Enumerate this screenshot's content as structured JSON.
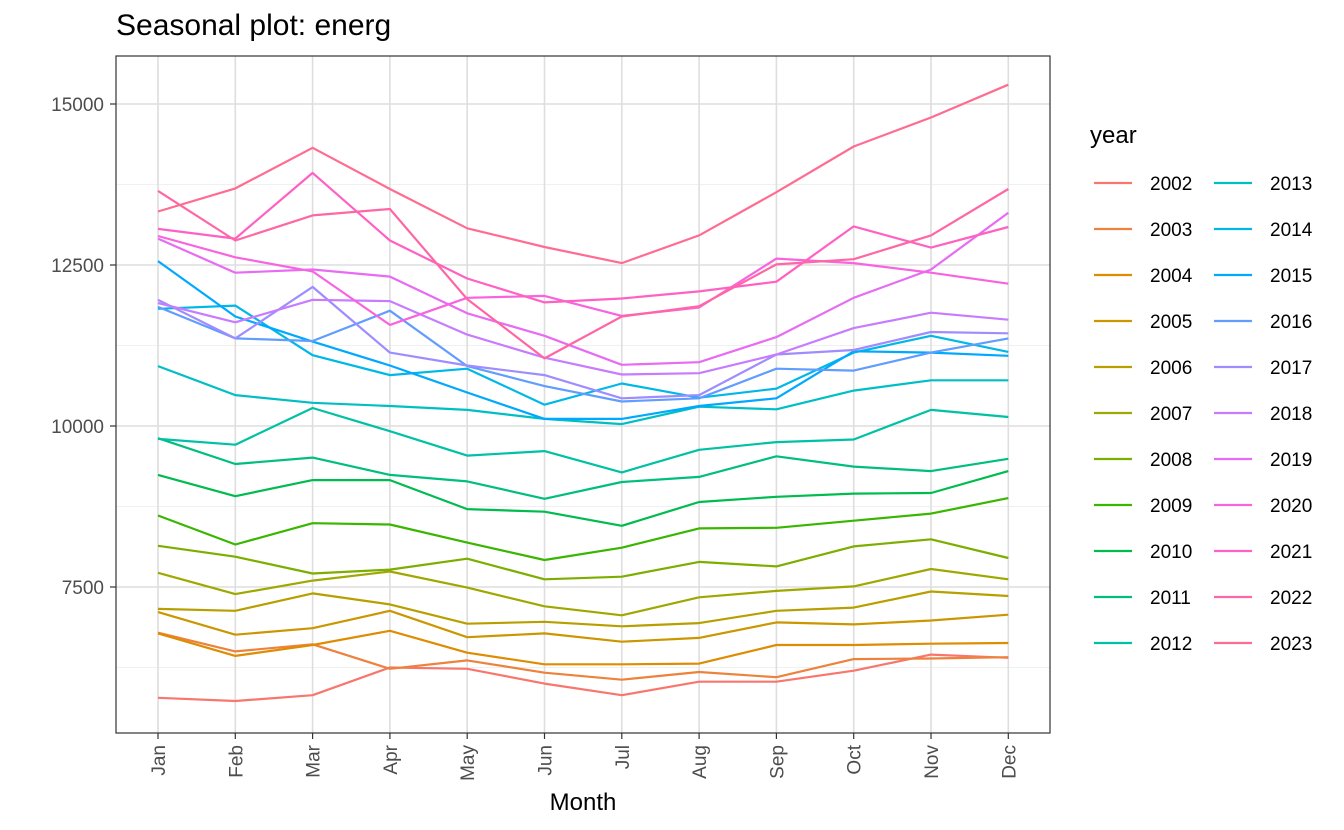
{
  "chart_data": {
    "type": "line",
    "title": "Seasonal plot: energ",
    "xlabel": "Month",
    "ylabel": "",
    "categories": [
      "Jan",
      "Feb",
      "Mar",
      "Apr",
      "May",
      "Jun",
      "Jul",
      "Aug",
      "Sep",
      "Oct",
      "Nov",
      "Dec"
    ],
    "yticks": [
      7500,
      10000,
      12500,
      15000
    ],
    "ylim": [
      5000,
      15800
    ],
    "grid": true,
    "legend": {
      "title": "year",
      "position": "right"
    },
    "series": [
      {
        "name": "2002",
        "color": "#F8766D",
        "values": [
          5780,
          5730,
          5820,
          6250,
          6230,
          6000,
          5820,
          6030,
          6030,
          6200,
          6450,
          6400
        ]
      },
      {
        "name": "2003",
        "color": "#EC823C",
        "values": [
          6790,
          6500,
          6610,
          6230,
          6360,
          6170,
          6060,
          6180,
          6100,
          6380,
          6390,
          6410
        ]
      },
      {
        "name": "2004",
        "color": "#DE8C00",
        "values": [
          6780,
          6430,
          6600,
          6820,
          6480,
          6300,
          6300,
          6310,
          6600,
          6600,
          6620,
          6630
        ]
      },
      {
        "name": "2005",
        "color": "#CC9600",
        "values": [
          7110,
          6760,
          6860,
          7130,
          6720,
          6780,
          6650,
          6710,
          6950,
          6920,
          6980,
          7070
        ]
      },
      {
        "name": "2006",
        "color": "#B79F00",
        "values": [
          7160,
          7130,
          7400,
          7230,
          6930,
          6960,
          6890,
          6940,
          7130,
          7180,
          7430,
          7360
        ]
      },
      {
        "name": "2007",
        "color": "#9FA800",
        "values": [
          7720,
          7390,
          7600,
          7740,
          7490,
          7200,
          7060,
          7340,
          7440,
          7510,
          7780,
          7620
        ]
      },
      {
        "name": "2008",
        "color": "#7CAE00",
        "values": [
          8140,
          7970,
          7710,
          7770,
          7940,
          7620,
          7660,
          7890,
          7820,
          8130,
          8240,
          7950
        ]
      },
      {
        "name": "2009",
        "color": "#39B600",
        "values": [
          8610,
          8160,
          8490,
          8470,
          8190,
          7920,
          8110,
          8410,
          8420,
          8530,
          8640,
          8880
        ]
      },
      {
        "name": "2010",
        "color": "#00BB4E",
        "values": [
          9240,
          8910,
          9160,
          9160,
          8710,
          8670,
          8450,
          8820,
          8900,
          8950,
          8960,
          9300
        ]
      },
      {
        "name": "2011",
        "color": "#00BF7D",
        "values": [
          9810,
          9410,
          9510,
          9240,
          9140,
          8870,
          9130,
          9210,
          9530,
          9370,
          9300,
          9490
        ]
      },
      {
        "name": "2012",
        "color": "#00C1A3",
        "values": [
          9800,
          9710,
          10280,
          9920,
          9540,
          9610,
          9280,
          9630,
          9750,
          9790,
          10250,
          10140
        ]
      },
      {
        "name": "2013",
        "color": "#00BFC4",
        "values": [
          10930,
          10480,
          10360,
          10310,
          10250,
          10110,
          10030,
          10300,
          10260,
          10550,
          10710,
          10710
        ]
      },
      {
        "name": "2014",
        "color": "#00B8E7",
        "values": [
          11820,
          11870,
          11100,
          10790,
          10890,
          10330,
          10660,
          10440,
          10580,
          11140,
          11400,
          11150
        ]
      },
      {
        "name": "2015",
        "color": "#00A9FF",
        "values": [
          12560,
          11700,
          11310,
          10940,
          10520,
          10110,
          10110,
          10310,
          10430,
          11160,
          11140,
          11090
        ]
      },
      {
        "name": "2016",
        "color": "#619CFF",
        "values": [
          11850,
          11360,
          11320,
          11790,
          10930,
          10620,
          10380,
          10430,
          10890,
          10860,
          11140,
          11360
        ]
      },
      {
        "name": "2017",
        "color": "#9F8CFF",
        "values": [
          11960,
          11360,
          12160,
          11140,
          10940,
          10790,
          10430,
          10480,
          11110,
          11180,
          11460,
          11440
        ]
      },
      {
        "name": "2018",
        "color": "#C77CFF",
        "values": [
          11910,
          11610,
          11960,
          11940,
          11420,
          11060,
          10800,
          10820,
          11110,
          11520,
          11760,
          11650
        ]
      },
      {
        "name": "2019",
        "color": "#E76BF3",
        "values": [
          12910,
          12380,
          12430,
          12320,
          11750,
          11400,
          10950,
          10990,
          11380,
          11990,
          12430,
          13310
        ]
      },
      {
        "name": "2020",
        "color": "#F863DF",
        "values": [
          12950,
          12620,
          12400,
          11570,
          11990,
          12020,
          11710,
          11840,
          12600,
          12530,
          12380,
          12210
        ]
      },
      {
        "name": "2021",
        "color": "#FF61C3",
        "values": [
          13060,
          12910,
          13930,
          12880,
          12290,
          11920,
          11980,
          12090,
          12240,
          13100,
          12770,
          13090
        ]
      },
      {
        "name": "2022",
        "color": "#FF67A4",
        "values": [
          13650,
          12880,
          13270,
          13370,
          11970,
          11050,
          11700,
          11860,
          12510,
          12590,
          12960,
          13680
        ]
      },
      {
        "name": "2023",
        "color": "#FF6C91",
        "values": [
          13330,
          13690,
          14320,
          13680,
          13070,
          12780,
          12530,
          12960,
          13630,
          14340,
          14790,
          15300
        ]
      }
    ]
  }
}
